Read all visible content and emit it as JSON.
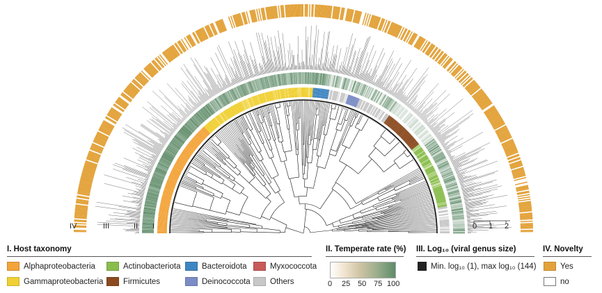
{
  "rings": {
    "iv": "IV",
    "iii": "III",
    "ii": "II",
    "i": "I"
  },
  "legend": {
    "host": {
      "title": "I. Host taxonomy",
      "items": [
        {
          "label": "Alphaproteobacteria",
          "color": "#f3a43a"
        },
        {
          "label": "Gammaproteobacteria",
          "color": "#f0d034"
        },
        {
          "label": "Actinobacteriota",
          "color": "#89bd4d"
        },
        {
          "label": "Firmicutes",
          "color": "#8b4a1f"
        },
        {
          "label": "Bacteroidota",
          "color": "#3e86c2"
        },
        {
          "label": "Deinococcota",
          "color": "#7b8cc6"
        },
        {
          "label": "Myxococcota",
          "color": "#c85a58"
        },
        {
          "label": "Others",
          "color": "#c8c8c8"
        }
      ]
    },
    "temperate": {
      "title": "II. Temperate rate (%)",
      "ticks": [
        "0",
        "25",
        "50",
        "75",
        "100"
      ],
      "color_low": "#ffffff",
      "color_high": "#5e8b68"
    },
    "genus_size": {
      "title": "III. Log₁₀ (viral genus size)",
      "text": "Min. log₁₀ (1), max log₁₀ (144)",
      "swatch": "#222222"
    },
    "novelty": {
      "title": "IV. Novelty",
      "items": [
        {
          "label": "Yes",
          "color": "#e3a33b"
        },
        {
          "label": "no",
          "color": "#ffffff"
        }
      ]
    }
  },
  "scale_ticks": [
    "0",
    "1",
    "2"
  ]
}
